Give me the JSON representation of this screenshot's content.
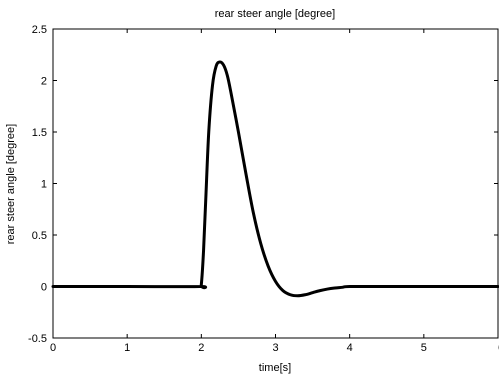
{
  "chart_data": {
    "type": "line",
    "title": "rear steer angle [degree]",
    "xlabel": "time[s]",
    "ylabel": "rear steer angle [degree]",
    "xlim": [
      0,
      6
    ],
    "ylim": [
      -0.5,
      2.5
    ],
    "xticks": [
      0,
      1,
      2,
      3,
      4,
      5,
      6
    ],
    "xtick_labels": [
      "0",
      "1",
      "2",
      "3",
      "4",
      "5",
      "6"
    ],
    "yticks": [
      -0.5,
      0,
      0.5,
      1,
      1.5,
      2,
      2.5
    ],
    "ytick_labels": [
      "-0.5",
      "0",
      "0.5",
      "1",
      "1.5",
      "2",
      "2.5"
    ],
    "grid": false,
    "series": [
      {
        "color": "#000000",
        "x": [
          0,
          1,
          1.98,
          2.0,
          2.03,
          2.06,
          2.1,
          2.15,
          2.2,
          2.25,
          2.3,
          2.35,
          2.4,
          2.5,
          2.6,
          2.7,
          2.8,
          2.9,
          3.0,
          3.1,
          3.2,
          3.3,
          3.4,
          3.5,
          3.6,
          3.7,
          3.8,
          3.9,
          4.0,
          4.5,
          5,
          6
        ],
        "y": [
          0,
          0,
          0,
          0.02,
          0.35,
          0.85,
          1.5,
          1.95,
          2.14,
          2.18,
          2.15,
          2.05,
          1.88,
          1.5,
          1.1,
          0.72,
          0.42,
          0.2,
          0.05,
          -0.04,
          -0.08,
          -0.09,
          -0.08,
          -0.06,
          -0.04,
          -0.025,
          -0.015,
          -0.008,
          0,
          0,
          0,
          0
        ]
      }
    ]
  }
}
